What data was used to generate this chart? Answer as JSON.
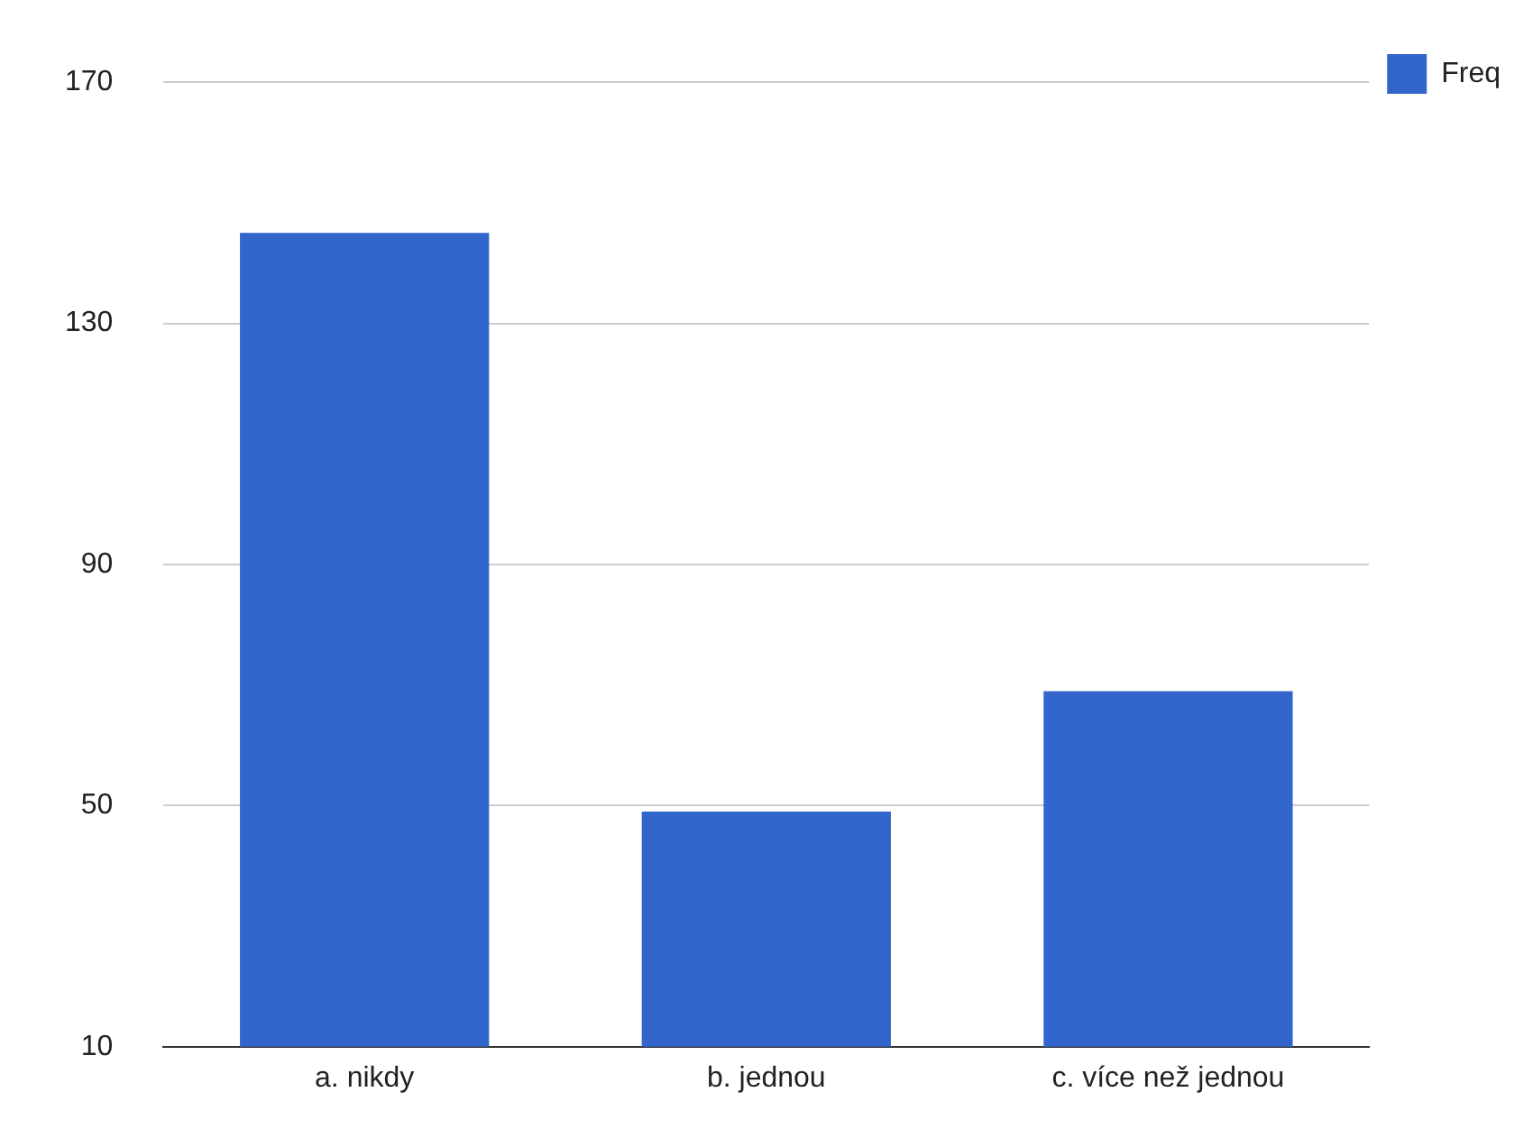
{
  "chart_data": {
    "type": "bar",
    "categories": [
      "a. nikdy",
      "b. jednou",
      "c. více než jednou"
    ],
    "series": [
      {
        "name": "Freq",
        "color": "#3366cc",
        "values": [
          145,
          49,
          69
        ]
      }
    ],
    "ylim": [
      10,
      170
    ],
    "yticks": [
      10,
      50,
      90,
      130,
      170
    ],
    "grid": "y",
    "legend": "top right"
  }
}
